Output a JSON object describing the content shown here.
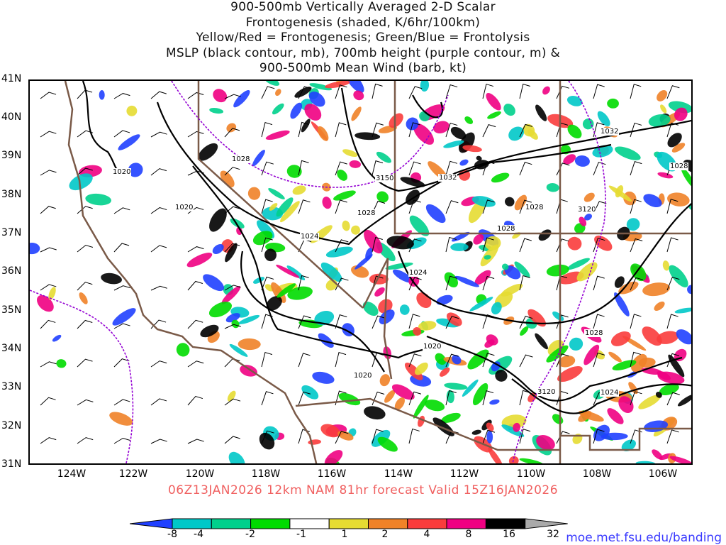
{
  "title": {
    "lines": [
      "900-500mb Vertically Averaged 2-D Scalar",
      "Frontogenesis (shaded, K/6hr/100km)",
      "Yellow/Red = Frontogenesis;  Green/Blue = Frontolysis",
      "MSLP (black contour, mb), 700mb height (purple contour, m) &",
      "900-500mb Mean Wind (barb, kt)"
    ]
  },
  "map": {
    "lat_labels": [
      "41N",
      "40N",
      "39N",
      "38N",
      "37N",
      "36N",
      "35N",
      "34N",
      "33N",
      "32N",
      "31N"
    ],
    "lon_labels": [
      "124W",
      "122W",
      "120W",
      "118W",
      "116W",
      "114W",
      "112W",
      "110W",
      "108W",
      "106W"
    ],
    "contour_labels": [
      "1020",
      "1020",
      "1028",
      "1024",
      "1028",
      "3150",
      "1032",
      "1028",
      "3120",
      "1032",
      "1028",
      "1024",
      "1020",
      "1020",
      "1028",
      "3120",
      "1024",
      "1028"
    ],
    "colors": {
      "coast": "#7a5a48",
      "mslp": "#000000",
      "height": "#9400d3"
    }
  },
  "valid_line": "06Z13JAN2026 12km NAM 81hr forecast Valid 15Z16JAN2026",
  "colorbar": {
    "ticks": [
      "-8",
      "-4",
      "-2",
      "-1",
      "1",
      "2",
      "4",
      "8",
      "16",
      "32"
    ],
    "colors": [
      "#2040ff",
      "#00c8c8",
      "#00d08c",
      "#00dc00",
      "#ffffff",
      "#e6dc32",
      "#f08228",
      "#fa3c3c",
      "#f00082",
      "#000000",
      "#aaaaaa"
    ]
  },
  "credit": "moe.met.fsu.edu/banding"
}
